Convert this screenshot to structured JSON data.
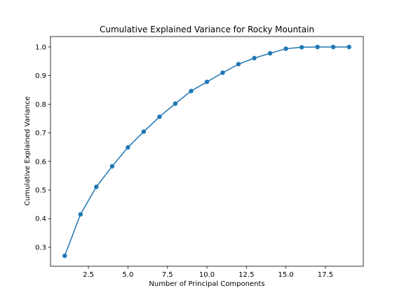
{
  "chart_data": {
    "type": "line",
    "title": "Cumulative Explained Variance for Rocky Mountain",
    "xlabel": "Number of Principal Components",
    "ylabel": "Cumulative Explained Variance",
    "x": [
      1,
      2,
      3,
      4,
      5,
      6,
      7,
      8,
      9,
      10,
      11,
      12,
      13,
      14,
      15,
      16,
      17,
      18,
      19
    ],
    "series": [
      {
        "values": [
          0.27,
          0.415,
          0.511,
          0.583,
          0.649,
          0.704,
          0.756,
          0.802,
          0.846,
          0.878,
          0.91,
          0.94,
          0.961,
          0.978,
          0.994,
          0.999,
          1.0,
          1.0,
          1.0
        ]
      }
    ],
    "xlim": [
      0.1,
      19.9
    ],
    "ylim": [
      0.2335,
      1.0365
    ],
    "xticks": [
      2.5,
      5.0,
      7.5,
      10.0,
      12.5,
      15.0,
      17.5
    ],
    "xtick_labels": [
      "2.5",
      "5.0",
      "7.5",
      "10.0",
      "12.5",
      "15.0",
      "17.5"
    ],
    "yticks": [
      0.3,
      0.4,
      0.5,
      0.6,
      0.7,
      0.8,
      0.9,
      1.0
    ],
    "ytick_labels": [
      "0.3",
      "0.4",
      "0.5",
      "0.6",
      "0.7",
      "0.8",
      "0.9",
      "1.0"
    ],
    "markers": true,
    "grid": false,
    "legend": "none",
    "line_color": "#1f77b4"
  }
}
